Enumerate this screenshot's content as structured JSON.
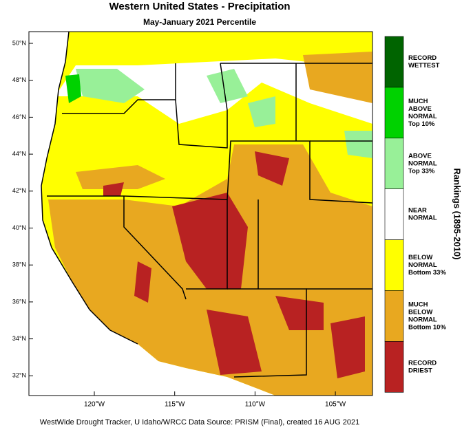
{
  "header": {
    "title": "Western United States - Precipitation",
    "subtitle": "May-January 2021 Percentile"
  },
  "map": {
    "lat_labels": [
      "50°N",
      "48°N",
      "46°N",
      "44°N",
      "42°N",
      "40°N",
      "38°N",
      "36°N",
      "34°N",
      "32°N"
    ],
    "lon_labels": [
      "120°W",
      "115°W",
      "110°W",
      "105°W"
    ]
  },
  "legend": {
    "title": "Rankings (1895-2010)",
    "entries": [
      {
        "lines": [
          "RECORD",
          "WETTEST"
        ],
        "color": "#006400"
      },
      {
        "lines": [
          "MUCH",
          "ABOVE",
          "NORMAL",
          "Top 10%"
        ],
        "color": "#00d200"
      },
      {
        "lines": [
          "ABOVE",
          "NORMAL",
          "Top 33%"
        ],
        "color": "#98f098"
      },
      {
        "lines": [
          "NEAR",
          "NORMAL"
        ],
        "color": "#ffffff"
      },
      {
        "lines": [
          "BELOW",
          "NORMAL",
          "Bottom 33%"
        ],
        "color": "#ffff00"
      },
      {
        "lines": [
          "MUCH",
          "BELOW",
          "NORMAL",
          "Bottom 10%"
        ],
        "color": "#e8a820"
      },
      {
        "lines": [
          "RECORD",
          "DRIEST"
        ],
        "color": "#b82222"
      }
    ]
  },
  "footer": "WestWide Drought Tracker, U Idaho/WRCC Data Source: PRISM (Final), created 16 AUG 2021"
}
